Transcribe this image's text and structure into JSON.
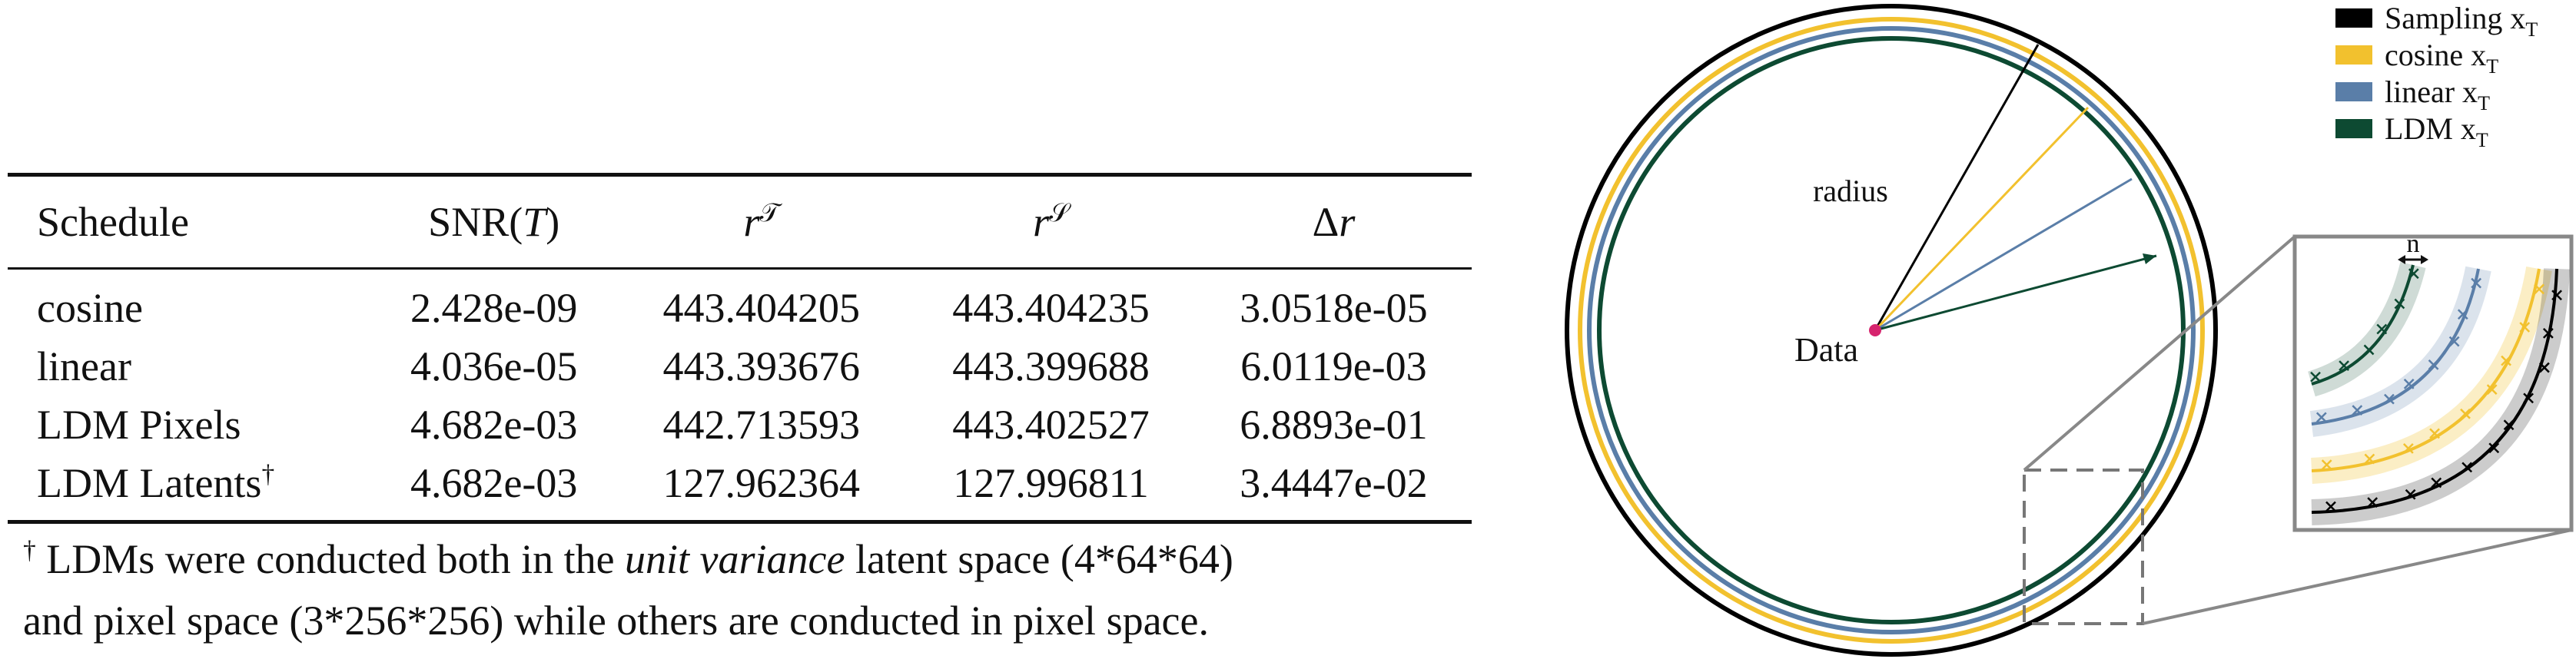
{
  "table": {
    "headers": [
      "Schedule",
      "SNR(T)",
      "r^T",
      "r^S",
      "Δr"
    ],
    "header_parts": {
      "snr_prefix": "SNR(",
      "snr_var": "T",
      "snr_suffix": ")",
      "r": "r",
      "t_sup": "𝒯",
      "s_sup": "𝒮",
      "delta": "Δ"
    },
    "rows": [
      {
        "schedule": "cosine",
        "marker": "",
        "snr": "2.428e-09",
        "rt": "443.404205",
        "rs": "443.404235",
        "dr": "3.0518e-05"
      },
      {
        "schedule": "linear",
        "marker": "",
        "snr": "4.036e-05",
        "rt": "443.393676",
        "rs": "443.399688",
        "dr": "6.0119e-03"
      },
      {
        "schedule": "LDM Pixels",
        "marker": "",
        "snr": "4.682e-03",
        "rt": "442.713593",
        "rs": "443.402527",
        "dr": "6.8893e-01"
      },
      {
        "schedule": "LDM Latents",
        "marker": "†",
        "snr": "4.682e-03",
        "rt": "127.962364",
        "rs": "127.996811",
        "dr": "3.4447e-02"
      }
    ]
  },
  "footnote": {
    "marker": "†",
    "part1": " LDMs were conducted both in the ",
    "emph": "unit variance",
    "part2": " latent space (4*64*64)",
    "line2": "and pixel space (3*256*256) while others are conducted in pixel space."
  },
  "figure": {
    "radius_label": "radius",
    "data_label": "Data",
    "n_label": "n",
    "colors": {
      "sampling": "#000000",
      "cosine": "#f2c12e",
      "linear": "#5a7ea8",
      "ldm": "#0d4a32",
      "data_point": "#d6246e"
    },
    "legend": [
      {
        "label": "Sampling x",
        "sub": "T",
        "color": "#000000"
      },
      {
        "label": "cosine x",
        "sub": "T",
        "color": "#f2c12e"
      },
      {
        "label": "linear x",
        "sub": "T",
        "color": "#5a7ea8"
      },
      {
        "label": "LDM x",
        "sub": "T",
        "color": "#0d4a32"
      }
    ]
  }
}
